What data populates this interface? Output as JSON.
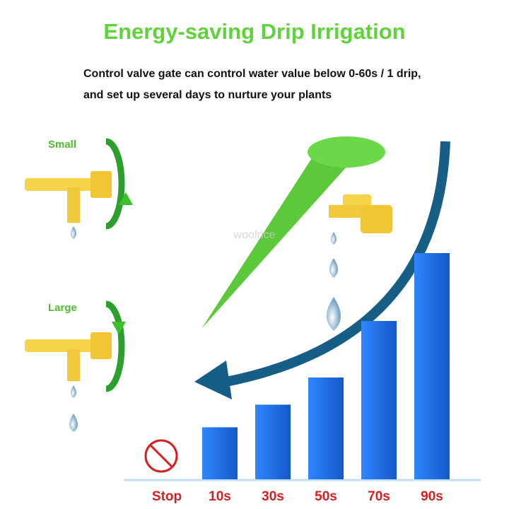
{
  "chart_data": {
    "type": "bar",
    "title": "Energy-saving Drip Irrigation",
    "subtitle": [
      "Control valve gate can control water value below 0-60s / 1 drip,",
      "and set up several days to nurture your plants"
    ],
    "labels": {
      "small": "Small",
      "large": "Large"
    },
    "watermark": "woolrice",
    "categories": [
      "Stop",
      "10s",
      "30s",
      "50s",
      "70s",
      "90s"
    ],
    "values": [
      0,
      23,
      33,
      45,
      70,
      100
    ],
    "color": "#1f6fe3",
    "ylim": [
      0,
      100
    ]
  }
}
